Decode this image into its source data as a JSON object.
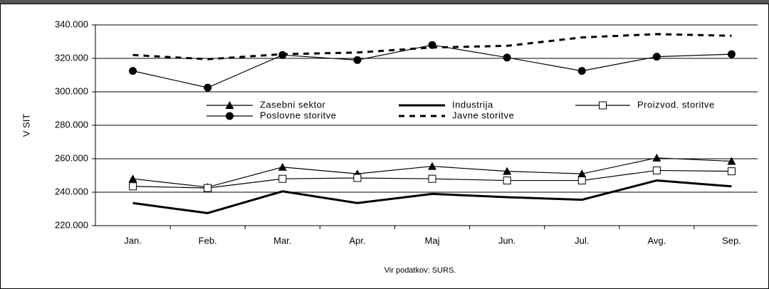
{
  "chart_data": {
    "type": "line",
    "y_label": "V SIT",
    "source": "Vir podatkov: SURS.",
    "categories": [
      "Jan.",
      "Feb.",
      "Mar.",
      "Apr.",
      "Maj",
      "Jun.",
      "Jul.",
      "Avg.",
      "Sep."
    ],
    "ylim": [
      220000,
      340000
    ],
    "yticks": [
      {
        "value": 220000,
        "label": "220.000"
      },
      {
        "value": 240000,
        "label": "240.000"
      },
      {
        "value": 260000,
        "label": "260.000"
      },
      {
        "value": 280000,
        "label": "280.000"
      },
      {
        "value": 300000,
        "label": "300.000"
      },
      {
        "value": 320000,
        "label": "320.000"
      },
      {
        "value": 340000,
        "label": "340.000"
      }
    ],
    "grid": true,
    "series": [
      {
        "name": "Zasebni sektor",
        "color": "#000000",
        "marker": "triangle",
        "line": "thin",
        "values": [
          248000,
          243000,
          255000,
          251000,
          255500,
          252500,
          251000,
          260500,
          258500
        ]
      },
      {
        "name": "Industrija",
        "color": "#000000",
        "marker": "none",
        "line": "bold",
        "values": [
          233500,
          227500,
          240500,
          233500,
          239000,
          237000,
          235500,
          247000,
          243500
        ]
      },
      {
        "name": "Proizvod. storitve",
        "color": "#000000",
        "marker": "square",
        "line": "thin",
        "values": [
          243500,
          242500,
          248000,
          248500,
          248000,
          247000,
          247000,
          253000,
          252500
        ]
      },
      {
        "name": "Poslovne storitve",
        "color": "#000000",
        "marker": "circle",
        "line": "thin",
        "values": [
          312500,
          302500,
          322000,
          319000,
          328000,
          320500,
          312500,
          321000,
          322500
        ]
      },
      {
        "name": "Javne storitve",
        "color": "#000000",
        "marker": "none",
        "line": "dashed",
        "values": [
          322000,
          319500,
          322500,
          323500,
          326500,
          327500,
          332500,
          334500,
          333500
        ]
      }
    ]
  }
}
